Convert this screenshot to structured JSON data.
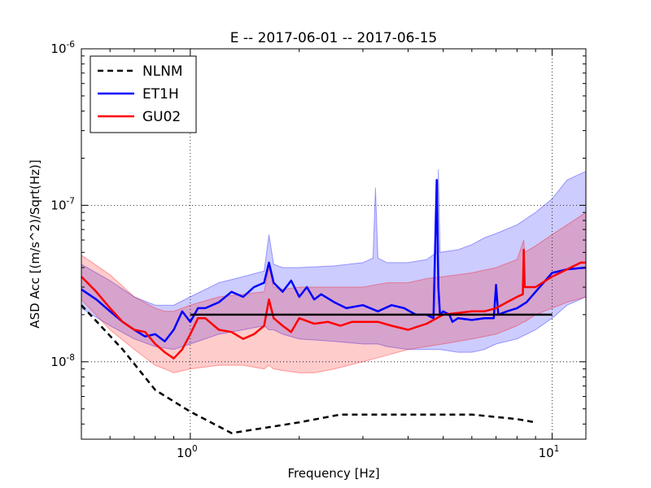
{
  "chart_data": {
    "type": "line",
    "title": "E -- 2017-06-01 -- 2017-06-15",
    "xlabel": "Frequency [Hz]",
    "ylabel": "ASD Acc [(m/s^2)/Sqrt(Hz)]",
    "xscale": "log",
    "yscale": "log",
    "xlim": [
      0.5,
      12.4
    ],
    "ylim": [
      3.2e-09,
      1e-06
    ],
    "grid": true,
    "legend_position": "top-left",
    "x_ticks": [
      {
        "base": "10",
        "exp": "0",
        "value": 1.0
      },
      {
        "base": "10",
        "exp": "1",
        "value": 10.0
      }
    ],
    "y_ticks": [
      {
        "base": "10",
        "exp": "-8",
        "value": 1e-08
      },
      {
        "base": "10",
        "exp": "-7",
        "value": 1e-07
      },
      {
        "base": "10",
        "exp": "-6",
        "value": 1e-06
      }
    ],
    "series": [
      {
        "name": "NLNM",
        "color": "#000000",
        "style": "dashed",
        "x": [
          0.5,
          0.65,
          0.8,
          1.0,
          1.3,
          2.0,
          2.6,
          4.0,
          6.0,
          8.0,
          9.0
        ],
        "y": [
          2.3e-08,
          1.2e-08,
          6.6e-09,
          4.8e-09,
          3.5e-09,
          4.1e-09,
          4.6e-09,
          4.6e-09,
          4.6e-09,
          4.3e-09,
          4.1e-09
        ]
      },
      {
        "name": "ET1H",
        "color": "#0000ff",
        "style": "solid",
        "x": [
          0.5,
          0.55,
          0.6,
          0.65,
          0.7,
          0.75,
          0.8,
          0.85,
          0.9,
          0.95,
          1.0,
          1.05,
          1.1,
          1.2,
          1.3,
          1.4,
          1.5,
          1.6,
          1.65,
          1.7,
          1.8,
          1.9,
          2.0,
          2.1,
          2.2,
          2.3,
          2.5,
          2.7,
          3.0,
          3.3,
          3.6,
          3.9,
          4.2,
          4.5,
          4.7,
          4.8,
          4.85,
          4.9,
          5.0,
          5.2,
          5.3,
          5.5,
          6.0,
          6.5,
          6.9,
          7.0,
          7.1,
          7.5,
          8.0,
          8.5,
          9.0,
          10.0,
          11.0,
          12.4
        ],
        "y": [
          2.9e-08,
          2.5e-08,
          2.1e-08,
          1.8e-08,
          1.6e-08,
          1.45e-08,
          1.5e-08,
          1.35e-08,
          1.6e-08,
          2.1e-08,
          1.8e-08,
          2.2e-08,
          2.2e-08,
          2.4e-08,
          2.8e-08,
          2.6e-08,
          3e-08,
          3.2e-08,
          4.3e-08,
          3.2e-08,
          2.8e-08,
          3.3e-08,
          2.6e-08,
          3e-08,
          2.5e-08,
          2.7e-08,
          2.4e-08,
          2.2e-08,
          2.3e-08,
          2.1e-08,
          2.3e-08,
          2.2e-08,
          2e-08,
          2e-08,
          1.9e-08,
          1.45e-07,
          3e-08,
          2e-08,
          2.1e-08,
          2e-08,
          1.8e-08,
          1.9e-08,
          1.85e-08,
          1.9e-08,
          1.9e-08,
          3.1e-08,
          2e-08,
          2.1e-08,
          2.2e-08,
          2.4e-08,
          2.8e-08,
          3.7e-08,
          3.9e-08,
          4e-08
        ]
      },
      {
        "name": "GU02",
        "color": "#ff0000",
        "style": "solid",
        "x": [
          0.5,
          0.55,
          0.6,
          0.65,
          0.7,
          0.75,
          0.8,
          0.85,
          0.9,
          0.95,
          1.0,
          1.05,
          1.1,
          1.2,
          1.3,
          1.4,
          1.5,
          1.6,
          1.65,
          1.7,
          1.8,
          1.9,
          2.0,
          2.2,
          2.4,
          2.6,
          2.8,
          3.0,
          3.3,
          3.6,
          4.0,
          4.5,
          5.0,
          5.5,
          6.0,
          6.5,
          7.0,
          7.5,
          8.0,
          8.3,
          8.35,
          8.4,
          9.0,
          10.0,
          11.0,
          12.0,
          12.4
        ],
        "y": [
          3.5e-08,
          2.8e-08,
          2.2e-08,
          1.8e-08,
          1.6e-08,
          1.55e-08,
          1.3e-08,
          1.15e-08,
          1.05e-08,
          1.2e-08,
          1.5e-08,
          1.9e-08,
          1.9e-08,
          1.6e-08,
          1.55e-08,
          1.4e-08,
          1.5e-08,
          1.7e-08,
          2.5e-08,
          1.9e-08,
          1.7e-08,
          1.55e-08,
          1.9e-08,
          1.75e-08,
          1.8e-08,
          1.7e-08,
          1.8e-08,
          1.8e-08,
          1.8e-08,
          1.7e-08,
          1.6e-08,
          1.75e-08,
          2e-08,
          2.05e-08,
          2.1e-08,
          2.1e-08,
          2.2e-08,
          2.4e-08,
          2.6e-08,
          2.7e-08,
          5.2e-08,
          3e-08,
          3e-08,
          3.5e-08,
          3.9e-08,
          4.3e-08,
          4.3e-08
        ]
      },
      {
        "name": "",
        "color": "#000000",
        "style": "solid",
        "x": [
          1.0,
          10.0
        ],
        "y": [
          2e-08,
          2e-08
        ]
      }
    ],
    "bands": [
      {
        "color": "#0000ff",
        "opacity": 0.2,
        "x": [
          0.5,
          0.6,
          0.7,
          0.8,
          0.9,
          1.0,
          1.2,
          1.4,
          1.6,
          1.65,
          1.7,
          1.8,
          2.0,
          2.5,
          3.0,
          3.2,
          3.25,
          3.3,
          3.5,
          4.0,
          4.5,
          4.8,
          4.85,
          4.9,
          5.5,
          6.0,
          6.5,
          7.0,
          8.0,
          9.0,
          10.0,
          11.0,
          12.4
        ],
        "low": [
          2.2e-08,
          1.7e-08,
          1.4e-08,
          1.25e-08,
          1.2e-08,
          1.3e-08,
          1.5e-08,
          1.6e-08,
          1.7e-08,
          1.6e-08,
          1.6e-08,
          1.5e-08,
          1.4e-08,
          1.35e-08,
          1.3e-08,
          1.3e-08,
          1.3e-08,
          1.3e-08,
          1.25e-08,
          1.2e-08,
          1.2e-08,
          1.2e-08,
          1.2e-08,
          1.2e-08,
          1.15e-08,
          1.15e-08,
          1.2e-08,
          1.3e-08,
          1.4e-08,
          1.6e-08,
          1.9e-08,
          2.3e-08,
          2.6e-08
        ],
        "high": [
          4.2e-08,
          3.3e-08,
          2.6e-08,
          2.3e-08,
          2.3e-08,
          2.6e-08,
          3.2e-08,
          3.5e-08,
          3.8e-08,
          6.5e-08,
          4.2e-08,
          4e-08,
          4e-08,
          4.1e-08,
          4.3e-08,
          4.6e-08,
          1.3e-07,
          4.6e-08,
          4.3e-08,
          4.3e-08,
          4.5e-08,
          5e-08,
          1.7e-07,
          5e-08,
          5.2e-08,
          5.6e-08,
          6.2e-08,
          6.6e-08,
          7.5e-08,
          9e-08,
          1.1e-07,
          1.45e-07,
          1.65e-07
        ]
      },
      {
        "color": "#ff0000",
        "opacity": 0.2,
        "x": [
          0.5,
          0.6,
          0.7,
          0.8,
          0.85,
          0.9,
          1.0,
          1.2,
          1.4,
          1.6,
          1.65,
          1.7,
          1.8,
          2.0,
          2.2,
          2.5,
          3.0,
          3.5,
          4.0,
          4.5,
          5.0,
          5.5,
          6.0,
          7.0,
          8.0,
          8.35,
          8.4,
          9.0,
          10.0,
          11.0,
          12.4
        ],
        "low": [
          2.5e-08,
          1.6e-08,
          1.2e-08,
          9.5e-09,
          9e-09,
          8.5e-09,
          9e-09,
          9.5e-09,
          9.5e-09,
          9e-09,
          9.5e-09,
          9e-09,
          8.8e-09,
          8.5e-09,
          8.5e-09,
          9e-09,
          1e-08,
          1.1e-08,
          1.2e-08,
          1.25e-08,
          1.3e-08,
          1.35e-08,
          1.4e-08,
          1.5e-08,
          1.7e-08,
          1.8e-08,
          1.8e-08,
          2e-08,
          2.2e-08,
          2.4e-08,
          2.6e-08
        ],
        "high": [
          4.8e-08,
          3.6e-08,
          2.6e-08,
          2.2e-08,
          2.1e-08,
          2.1e-08,
          2.3e-08,
          2.6e-08,
          2.7e-08,
          2.8e-08,
          4e-08,
          3e-08,
          2.9e-08,
          3e-08,
          3e-08,
          3e-08,
          3e-08,
          3.2e-08,
          3.2e-08,
          3.4e-08,
          3.5e-08,
          3.6e-08,
          3.7e-08,
          4e-08,
          4.5e-08,
          6e-08,
          5e-08,
          5.5e-08,
          6.5e-08,
          7.5e-08,
          9e-08
        ]
      }
    ]
  }
}
